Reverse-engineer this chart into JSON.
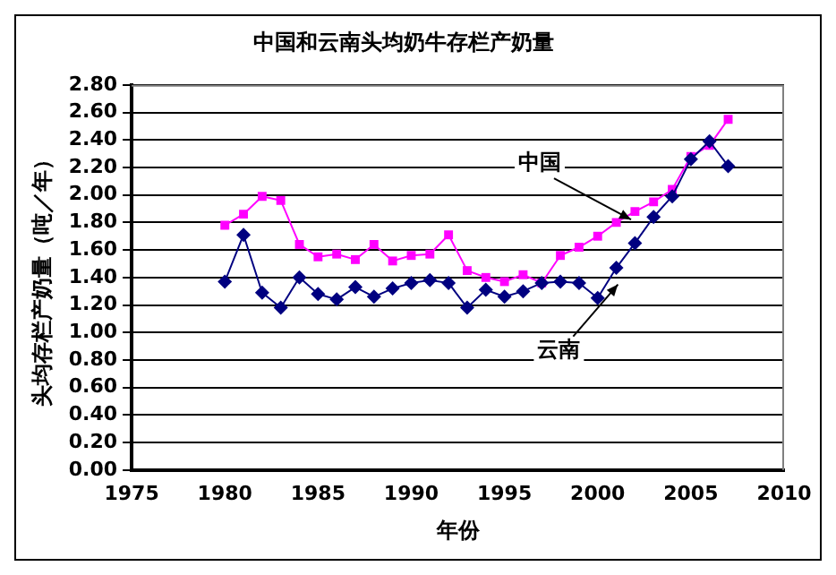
{
  "chart_data": {
    "type": "line",
    "title": "中国和云南头均奶牛存栏产奶量",
    "xlabel": "年份",
    "ylabel": "头均存栏产奶量（吨／年）",
    "x": [
      1980,
      1981,
      1982,
      1983,
      1984,
      1985,
      1986,
      1987,
      1988,
      1989,
      1990,
      1991,
      1992,
      1993,
      1994,
      1995,
      1996,
      1997,
      1998,
      1999,
      2000,
      2001,
      2002,
      2003,
      2004,
      2005,
      2006,
      2007
    ],
    "series": [
      {
        "color": "#ff00ff",
        "marker": "square",
        "values": [
          1.78,
          1.86,
          1.99,
          1.96,
          1.64,
          1.55,
          1.57,
          1.53,
          1.64,
          1.52,
          1.56,
          1.57,
          1.71,
          1.45,
          1.4,
          1.37,
          1.42,
          1.36,
          1.56,
          1.62,
          1.7,
          1.8,
          1.88,
          1.95,
          2.04,
          2.28,
          2.36,
          2.55
        ]
      },
      {
        "color": "#000080",
        "marker": "diamond",
        "values": [
          1.37,
          1.71,
          1.29,
          1.18,
          1.4,
          1.28,
          1.24,
          1.33,
          1.26,
          1.32,
          1.36,
          1.38,
          1.36,
          1.18,
          1.31,
          1.26,
          1.3,
          1.36,
          1.37,
          1.36,
          1.25,
          1.47,
          1.65,
          1.84,
          1.99,
          2.26,
          2.39,
          2.21
        ]
      }
    ],
    "annotations": [
      {
        "text": "中国",
        "x": 2001.5,
        "y": 1.86
      },
      {
        "text": "云南",
        "x": 2000.8,
        "y": 1.31
      }
    ],
    "xlim": [
      1975,
      2010
    ],
    "xticks": [
      1975,
      1980,
      1985,
      1990,
      1995,
      2000,
      2005,
      2010
    ],
    "ylim": [
      0,
      2.8
    ],
    "yticks": [
      {
        "value": 0,
        "label": "0.00"
      },
      {
        "value": 0.2,
        "label": "0.20"
      },
      {
        "value": 0.4,
        "label": "0.40"
      },
      {
        "value": 0.6,
        "label": "0.60"
      },
      {
        "value": 0.8,
        "label": "0.80"
      },
      {
        "value": 1.0,
        "label": "1.00"
      },
      {
        "value": 1.2,
        "label": "1.20"
      },
      {
        "value": 1.4,
        "label": "1.40"
      },
      {
        "value": 1.6,
        "label": "1.60"
      },
      {
        "value": 1.8,
        "label": "1.80"
      },
      {
        "value": 2.0,
        "label": "2.00"
      },
      {
        "value": 2.2,
        "label": "2.20"
      },
      {
        "value": 2.4,
        "label": "2.40"
      },
      {
        "value": 2.6,
        "label": "2.60"
      },
      {
        "value": 2.8,
        "label": "2.80"
      }
    ],
    "grid": "y",
    "legend": false
  }
}
